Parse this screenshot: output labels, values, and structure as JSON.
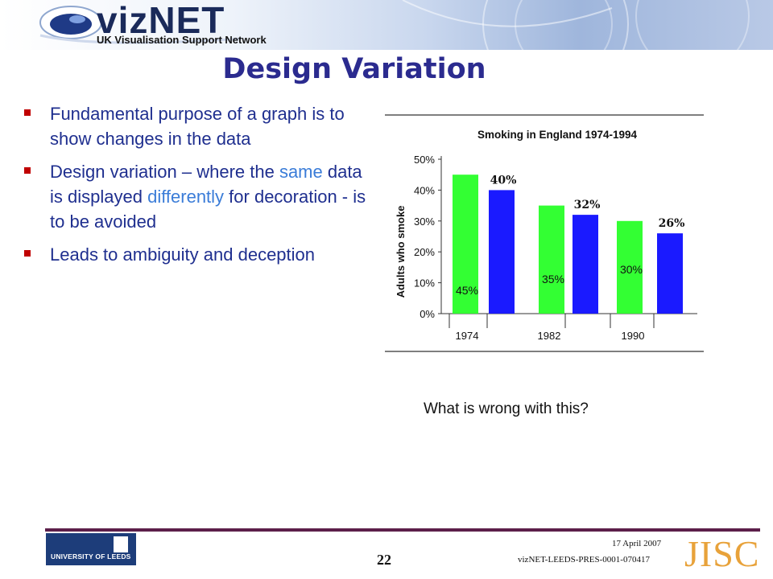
{
  "header": {
    "logo_name": "vizNET",
    "logo_tagline": "UK Visualisation Support Network"
  },
  "slide": {
    "title": "Design Variation",
    "bullets": {
      "b1": "Fundamental purpose of a graph is to show changes in the data",
      "b2_pre": "Design variation – where the ",
      "b2_same": "same",
      "b2_mid": " data is displayed ",
      "b2_diff": "differently",
      "b2_post": " for decoration - is to be avoided",
      "b3": "Leads to ambiguity and deception"
    },
    "caption": "What is wrong with this?"
  },
  "chart_data": {
    "type": "bar",
    "title": "Smoking in England 1974-1994",
    "ylabel": "Adults who smoke",
    "ylim": [
      0,
      50
    ],
    "y_ticks": [
      "0%",
      "10%",
      "20%",
      "30%",
      "40%",
      "50%"
    ],
    "categories": [
      "1974",
      "1982",
      "1990"
    ],
    "bars": [
      {
        "group": "1974",
        "value": 45,
        "label": "45%",
        "label_pos": "inside-bottom",
        "color": "#33ff33"
      },
      {
        "group": "1974",
        "value": 40,
        "label": "40%",
        "label_pos": "above",
        "color": "#1a1aff"
      },
      {
        "group": "1982",
        "value": 35,
        "label": "35%",
        "label_pos": "inside-bottom",
        "color": "#33ff33"
      },
      {
        "group": "1982",
        "value": 32,
        "label": "32%",
        "label_pos": "above",
        "color": "#1a1aff"
      },
      {
        "group": "1990",
        "value": 30,
        "label": "30%",
        "label_pos": "inside-bottom",
        "color": "#33ff33"
      },
      {
        "group": "1990",
        "value": 26,
        "label": "26%",
        "label_pos": "above",
        "color": "#1a1aff"
      }
    ]
  },
  "footer": {
    "university": "UNIVERSITY OF LEEDS",
    "page_number": "22",
    "date": "17 April 2007",
    "reference": "vizNET-LEEDS-PRES-0001-070417",
    "partner_logo": "JISC"
  }
}
